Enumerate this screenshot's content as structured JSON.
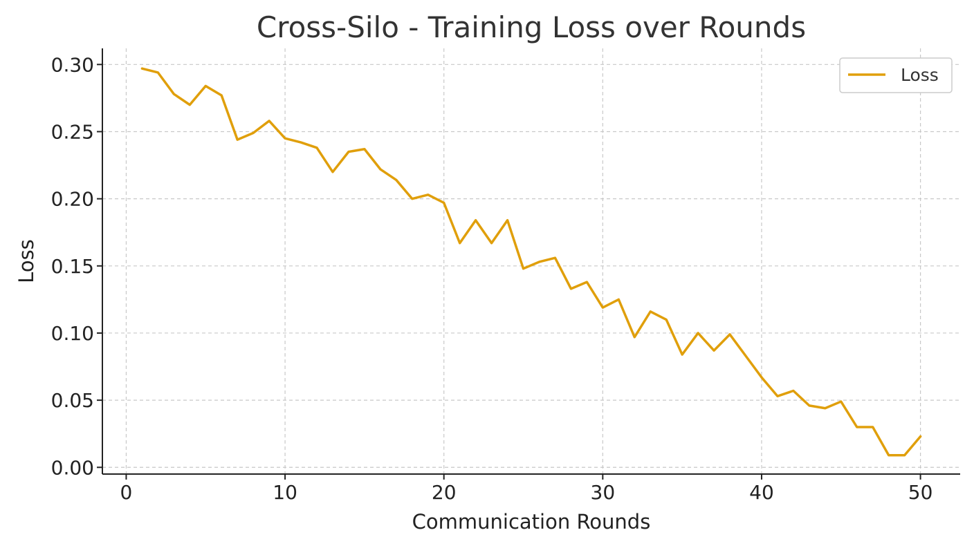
{
  "chart_data": {
    "type": "line",
    "title": "Cross-Silo - Training Loss over Rounds",
    "xlabel": "Communication Rounds",
    "ylabel": "Loss",
    "xlim": [
      -1.5,
      52.5
    ],
    "ylim": [
      -0.005,
      0.312
    ],
    "xticks": [
      0,
      10,
      20,
      30,
      40,
      50
    ],
    "yticks": [
      0.0,
      0.05,
      0.1,
      0.15,
      0.2,
      0.25,
      0.3
    ],
    "ytick_labels": [
      "0.00",
      "0.05",
      "0.10",
      "0.15",
      "0.20",
      "0.25",
      "0.30"
    ],
    "grid": true,
    "legend_position": "top-right",
    "series": [
      {
        "name": "Loss",
        "color": "#E09F0B",
        "x": [
          1,
          2,
          3,
          4,
          5,
          6,
          7,
          8,
          9,
          10,
          11,
          12,
          13,
          14,
          15,
          16,
          17,
          18,
          19,
          20,
          21,
          22,
          23,
          24,
          25,
          26,
          27,
          28,
          29,
          30,
          31,
          32,
          33,
          34,
          35,
          36,
          37,
          38,
          39,
          40,
          41,
          42,
          43,
          44,
          45,
          46,
          47,
          48,
          49,
          50
        ],
        "y": [
          0.297,
          0.294,
          0.278,
          0.27,
          0.284,
          0.277,
          0.244,
          0.249,
          0.258,
          0.245,
          0.242,
          0.238,
          0.22,
          0.235,
          0.237,
          0.222,
          0.214,
          0.2,
          0.203,
          0.197,
          0.167,
          0.184,
          0.167,
          0.184,
          0.148,
          0.153,
          0.156,
          0.133,
          0.138,
          0.119,
          0.125,
          0.097,
          0.116,
          0.11,
          0.084,
          0.1,
          0.087,
          0.099,
          0.083,
          0.067,
          0.053,
          0.057,
          0.046,
          0.044,
          0.049,
          0.03,
          0.03,
          0.009,
          0.009,
          0.023
        ]
      }
    ]
  }
}
